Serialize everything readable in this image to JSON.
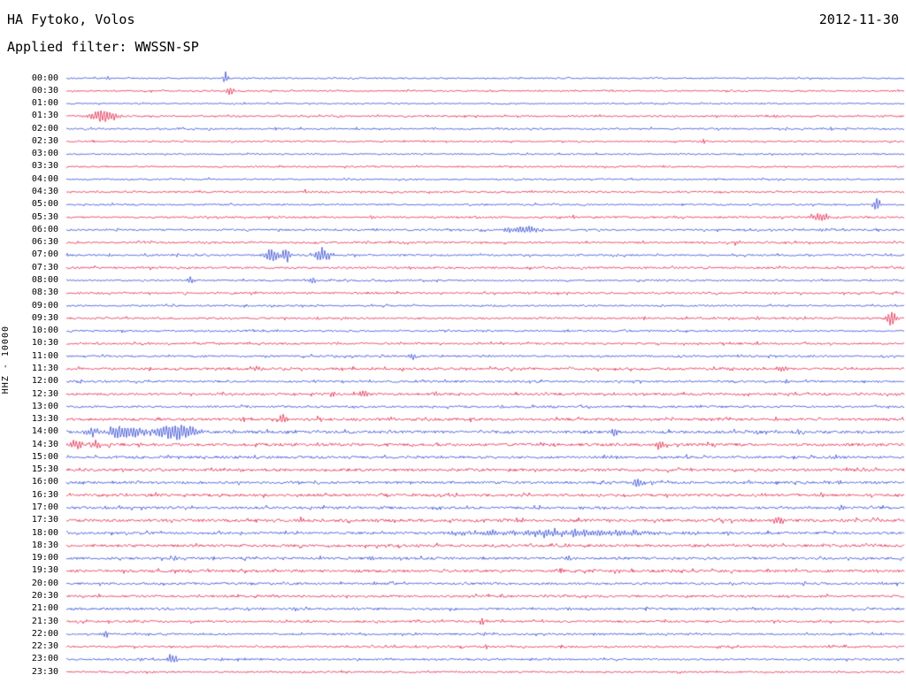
{
  "header": {
    "station": "HA Fytoko, Volos",
    "date": "2012-11-30",
    "filter": "Applied filter: WWSSN-SP"
  },
  "left_axis_label": "HHZ - 10000",
  "chart_data": {
    "type": "line",
    "subtype": "helicorder-daily-seismogram",
    "title": "HA Fytoko, Volos",
    "date": "2012-11-30",
    "channel_scale": "HHZ - 10000",
    "applied_filter": "WWSSN-SP",
    "minutes_per_row": 30,
    "rows_total": 48,
    "legend": "none",
    "grid": false,
    "colors": {
      "b": "#1d35cf",
      "r": "#e0103a"
    },
    "trace_color_sequence": [
      "blue",
      "red"
    ],
    "event_note": "ev entries are [fraction-along-row, amplitude-px, half-width-px] of visible bursts/spikes",
    "rows": [
      {
        "t": "00:00",
        "c": "b",
        "n": 0.8,
        "ev": [
          [
            0.19,
            8,
            3
          ],
          [
            0.05,
            2.5,
            2
          ]
        ]
      },
      {
        "t": "00:30",
        "c": "r",
        "n": 0.8,
        "ev": [
          [
            0.196,
            6,
            5
          ]
        ]
      },
      {
        "t": "01:00",
        "c": "b",
        "n": 0.7,
        "ev": [
          [
            0.83,
            1.5,
            2
          ]
        ]
      },
      {
        "t": "01:30",
        "c": "r",
        "n": 0.9,
        "ev": [
          [
            0.045,
            9,
            14
          ],
          [
            0.54,
            2.5,
            2
          ],
          [
            0.8,
            2,
            2
          ],
          [
            0.845,
            3,
            3
          ]
        ]
      },
      {
        "t": "02:00",
        "c": "b",
        "n": 0.9,
        "ev": [
          [
            0.86,
            3,
            3
          ],
          [
            0.32,
            1.5,
            2
          ]
        ]
      },
      {
        "t": "02:30",
        "c": "r",
        "n": 0.8,
        "ev": [
          [
            0.76,
            2.5,
            2
          ]
        ]
      },
      {
        "t": "03:00",
        "c": "b",
        "n": 0.8,
        "ev": [
          [
            0.55,
            1.5,
            2
          ]
        ]
      },
      {
        "t": "03:30",
        "c": "r",
        "n": 0.8,
        "ev": [
          [
            0.72,
            2,
            2
          ],
          [
            0.83,
            2,
            2
          ]
        ]
      },
      {
        "t": "04:00",
        "c": "b",
        "n": 0.8,
        "ev": [
          [
            0.17,
            2,
            2
          ],
          [
            0.42,
            1.8,
            2
          ]
        ]
      },
      {
        "t": "04:30",
        "c": "r",
        "n": 0.9,
        "ev": [
          [
            0.285,
            2.5,
            2
          ],
          [
            0.35,
            2,
            2
          ]
        ]
      },
      {
        "t": "05:00",
        "c": "b",
        "n": 0.9,
        "ev": [
          [
            0.967,
            8,
            5
          ],
          [
            0.055,
            2,
            2
          ]
        ]
      },
      {
        "t": "05:30",
        "c": "r",
        "n": 1.0,
        "ev": [
          [
            0.9,
            6,
            10
          ],
          [
            0.605,
            3,
            2
          ]
        ]
      },
      {
        "t": "06:00",
        "c": "b",
        "n": 1.0,
        "ev": [
          [
            0.545,
            5,
            20
          ],
          [
            0.9,
            2,
            3
          ]
        ]
      },
      {
        "t": "06:30",
        "c": "r",
        "n": 1.0,
        "ev": [
          [
            0.8,
            3,
            3
          ],
          [
            0.92,
            2,
            2
          ]
        ]
      },
      {
        "t": "07:00",
        "c": "b",
        "n": 1.0,
        "ev": [
          [
            0.245,
            9,
            8
          ],
          [
            0.262,
            9,
            6
          ],
          [
            0.305,
            9,
            9
          ],
          [
            0.052,
            3,
            2
          ],
          [
            0.13,
            3,
            4
          ]
        ]
      },
      {
        "t": "07:30",
        "c": "r",
        "n": 1.1,
        "ev": [
          [
            0.35,
            2,
            3
          ]
        ]
      },
      {
        "t": "08:00",
        "c": "b",
        "n": 0.9,
        "ev": [
          [
            0.148,
            5,
            5
          ],
          [
            0.295,
            4,
            4
          ]
        ]
      },
      {
        "t": "08:30",
        "c": "r",
        "n": 1.0,
        "ev": []
      },
      {
        "t": "09:00",
        "c": "b",
        "n": 0.9,
        "ev": [
          [
            0.3,
            2,
            2
          ]
        ]
      },
      {
        "t": "09:30",
        "c": "r",
        "n": 1.0,
        "ev": [
          [
            0.985,
            10,
            6
          ],
          [
            0.825,
            4,
            3
          ],
          [
            0.3,
            2.5,
            2
          ]
        ]
      },
      {
        "t": "10:00",
        "c": "b",
        "n": 0.9,
        "ev": [
          [
            0.068,
            2.5,
            2
          ],
          [
            0.17,
            2,
            2
          ]
        ]
      },
      {
        "t": "10:30",
        "c": "r",
        "n": 1.0,
        "ev": [
          [
            0.71,
            2.5,
            2
          ],
          [
            0.825,
            3,
            3
          ]
        ]
      },
      {
        "t": "11:00",
        "c": "b",
        "n": 1.0,
        "ev": [
          [
            0.292,
            3,
            2
          ],
          [
            0.412,
            5,
            4
          ]
        ]
      },
      {
        "t": "11:30",
        "c": "r",
        "n": 1.3,
        "ev": [
          [
            0.227,
            4,
            3
          ],
          [
            0.79,
            3,
            6
          ],
          [
            0.855,
            3,
            6
          ]
        ]
      },
      {
        "t": "12:00",
        "c": "b",
        "n": 1.1,
        "ev": [
          [
            0.425,
            2.5,
            2
          ],
          [
            0.86,
            2,
            3
          ]
        ]
      },
      {
        "t": "12:30",
        "c": "r",
        "n": 1.2,
        "ev": [
          [
            0.317,
            4,
            4
          ],
          [
            0.354,
            6,
            5
          ],
          [
            0.441,
            4,
            4
          ]
        ]
      },
      {
        "t": "13:00",
        "c": "b",
        "n": 1.1,
        "ev": [
          [
            0.52,
            2,
            2
          ]
        ]
      },
      {
        "t": "13:30",
        "c": "r",
        "n": 1.4,
        "ev": [
          [
            0.259,
            6,
            5
          ],
          [
            0.3,
            3,
            4
          ],
          [
            0.7,
            2.5,
            3
          ]
        ]
      },
      {
        "t": "14:00",
        "c": "b",
        "n": 1.5,
        "ev": [
          [
            0.03,
            6,
            8
          ],
          [
            0.07,
            9,
            20
          ],
          [
            0.13,
            10,
            25
          ],
          [
            0.655,
            7,
            4
          ],
          [
            0.3,
            3,
            3
          ]
        ]
      },
      {
        "t": "14:30",
        "c": "r",
        "n": 1.5,
        "ev": [
          [
            0.012,
            6,
            8
          ],
          [
            0.035,
            5,
            6
          ],
          [
            0.708,
            6,
            4
          ],
          [
            0.3,
            2.5,
            2
          ]
        ]
      },
      {
        "t": "15:00",
        "c": "b",
        "n": 1.3,
        "ev": [
          [
            0.915,
            4,
            4
          ],
          [
            0.74,
            2.5,
            2
          ]
        ]
      },
      {
        "t": "15:30",
        "c": "r",
        "n": 1.4,
        "ev": [
          [
            0.21,
            2.5,
            3
          ],
          [
            0.745,
            3,
            3
          ]
        ]
      },
      {
        "t": "16:00",
        "c": "b",
        "n": 1.3,
        "ev": [
          [
            0.682,
            5,
            6
          ],
          [
            0.924,
            3,
            3
          ]
        ]
      },
      {
        "t": "16:30",
        "c": "r",
        "n": 1.4,
        "ev": [
          [
            0.3,
            2.5,
            2
          ]
        ]
      },
      {
        "t": "17:00",
        "c": "b",
        "n": 1.3,
        "ev": [
          [
            0.565,
            4,
            3
          ],
          [
            0.615,
            3,
            2
          ],
          [
            0.925,
            3,
            3
          ]
        ]
      },
      {
        "t": "17:30",
        "c": "r",
        "n": 1.5,
        "ev": [
          [
            0.85,
            5,
            8
          ],
          [
            0.28,
            3,
            3
          ],
          [
            0.5,
            2.5,
            2
          ]
        ]
      },
      {
        "t": "18:00",
        "c": "b",
        "n": 1.3,
        "ev": [
          [
            0.6,
            4,
            110
          ],
          [
            0.47,
            3,
            10
          ]
        ]
      },
      {
        "t": "18:30",
        "c": "r",
        "n": 1.4,
        "ev": [
          [
            0.6,
            2,
            4
          ]
        ]
      },
      {
        "t": "19:00",
        "c": "b",
        "n": 1.3,
        "ev": [
          [
            0.365,
            5,
            3
          ],
          [
            0.6,
            3.5,
            3
          ],
          [
            0.13,
            2.5,
            2
          ]
        ]
      },
      {
        "t": "19:30",
        "c": "r",
        "n": 1.4,
        "ev": [
          [
            0.42,
            2.5,
            2
          ],
          [
            0.63,
            2.5,
            2
          ]
        ]
      },
      {
        "t": "20:00",
        "c": "b",
        "n": 1.2,
        "ev": [
          [
            0.26,
            2.5,
            2
          ]
        ]
      },
      {
        "t": "20:30",
        "c": "r",
        "n": 1.2,
        "ev": [
          [
            0.52,
            2,
            2
          ]
        ]
      },
      {
        "t": "21:00",
        "c": "b",
        "n": 1.2,
        "ev": [
          [
            0.232,
            3,
            3
          ],
          [
            0.275,
            3,
            3
          ],
          [
            0.6,
            2.5,
            2
          ]
        ]
      },
      {
        "t": "21:30",
        "c": "r",
        "n": 1.1,
        "ev": [
          [
            0.496,
            6,
            3
          ],
          [
            0.9,
            2.5,
            2
          ]
        ]
      },
      {
        "t": "22:00",
        "c": "b",
        "n": 1.0,
        "ev": [
          [
            0.047,
            6,
            3
          ],
          [
            0.5,
            2.5,
            2
          ]
        ]
      },
      {
        "t": "22:30",
        "c": "r",
        "n": 1.0,
        "ev": [
          [
            0.5,
            2,
            2
          ]
        ]
      },
      {
        "t": "23:00",
        "c": "b",
        "n": 1.0,
        "ev": [
          [
            0.127,
            7,
            6
          ],
          [
            0.09,
            3,
            2
          ]
        ]
      },
      {
        "t": "23:30",
        "c": "r",
        "n": 0.9,
        "ev": []
      }
    ]
  }
}
